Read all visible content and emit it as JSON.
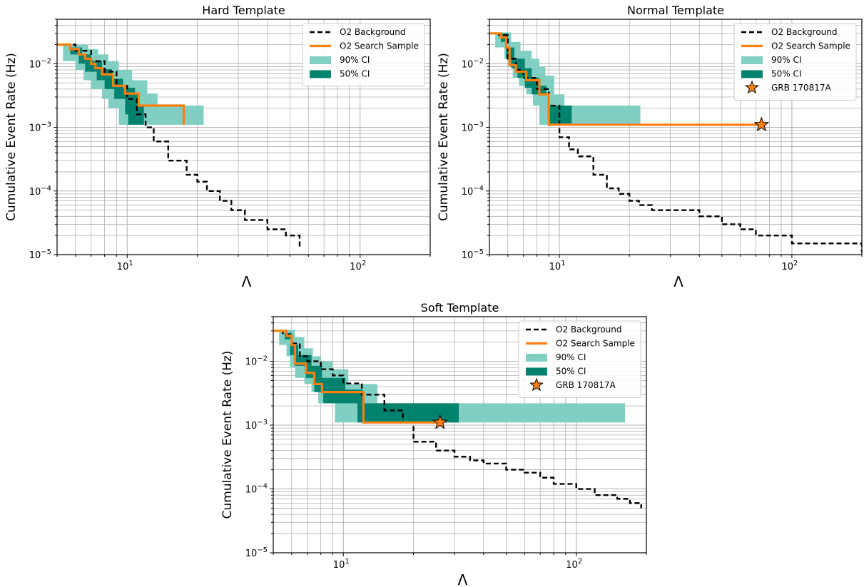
{
  "colors": {
    "background": "#000000",
    "sample": "#ff7f0e",
    "ci90": "#80cfc2",
    "ci50": "#00826e",
    "star_fill": "#ff7f0e",
    "grid": "#b0b0b0"
  },
  "chart_data": [
    {
      "type": "line",
      "title": "Hard Template",
      "xlabel": "Λ",
      "ylabel": "Cumulative Event Rate (Hz)",
      "xscale": "log",
      "yscale": "log",
      "xlim": [
        5,
        200
      ],
      "ylim": [
        1e-05,
        0.05
      ],
      "x_ticks": [
        {
          "value": 10,
          "label": "10",
          "sup": "1"
        },
        {
          "value": 100,
          "label": "10",
          "sup": "2"
        }
      ],
      "y_ticks": [
        {
          "value": 1e-05,
          "label": "10",
          "sup": "−5"
        },
        {
          "value": 0.0001,
          "label": "10",
          "sup": "−4"
        },
        {
          "value": 0.001,
          "label": "10",
          "sup": "−3"
        },
        {
          "value": 0.01,
          "label": "10",
          "sup": "−2"
        }
      ],
      "grid": true,
      "legend": {
        "placement": "top-right",
        "entries": [
          {
            "label": "O2 Background",
            "kind": "dash"
          },
          {
            "label": "O2 Search Sample",
            "kind": "line"
          },
          {
            "label": "90% CI",
            "kind": "patch90"
          },
          {
            "label": "50% CI",
            "kind": "patch50"
          }
        ]
      },
      "series": [
        {
          "name": "O2 Background",
          "x": [
            5,
            6,
            7,
            8,
            9,
            10,
            11,
            12,
            13,
            15,
            18,
            20,
            22,
            25,
            28,
            32,
            40,
            48,
            55
          ],
          "y": [
            0.02,
            0.016,
            0.011,
            0.0075,
            0.0045,
            0.0028,
            0.0016,
            0.001,
            0.0006,
            0.0003,
            0.00018,
            0.00014,
            0.0001,
            7e-05,
            5e-05,
            3.5e-05,
            2.5e-05,
            2e-05,
            1.3e-05
          ]
        },
        {
          "name": "O2 Search Sample",
          "x": [
            5,
            5.7,
            6.2,
            6.6,
            7,
            7.3,
            7.8,
            8.7,
            9.8,
            11.2,
            17.5
          ],
          "y": [
            0.02,
            0.017,
            0.014,
            0.012,
            0.01,
            0.0085,
            0.0068,
            0.0045,
            0.0034,
            0.0022,
            0.0011
          ]
        }
      ],
      "ci90_bands": [
        [
          5.3,
          6.8,
          0.011,
          0.02
        ],
        [
          6.0,
          7.5,
          0.008,
          0.017
        ],
        [
          6.5,
          8.3,
          0.0055,
          0.014
        ],
        [
          7.0,
          9.2,
          0.004,
          0.011
        ],
        [
          7.8,
          10.5,
          0.0028,
          0.008
        ],
        [
          8.3,
          12.2,
          0.002,
          0.0055
        ],
        [
          9.2,
          13.5,
          0.0016,
          0.0034
        ],
        [
          9.2,
          21.3,
          0.0011,
          0.0022
        ]
      ],
      "ci50_bands": [
        [
          5.7,
          6.4,
          0.014,
          0.018
        ],
        [
          6.2,
          7.0,
          0.01,
          0.014
        ],
        [
          6.6,
          7.8,
          0.0075,
          0.011
        ],
        [
          7.4,
          8.6,
          0.0055,
          0.0082
        ],
        [
          8.0,
          9.6,
          0.004,
          0.0058
        ],
        [
          8.8,
          10.8,
          0.0028,
          0.0042
        ],
        [
          9.8,
          11.3,
          0.0016,
          0.0034
        ],
        [
          10.1,
          11.8,
          0.0011,
          0.0022
        ]
      ]
    },
    {
      "type": "line",
      "title": "Normal Template",
      "xlabel": "Λ",
      "ylabel": "Cumulative Event Rate (Hz)",
      "xscale": "log",
      "yscale": "log",
      "xlim": [
        5,
        200
      ],
      "ylim": [
        1e-05,
        0.05
      ],
      "x_ticks": [
        {
          "value": 10,
          "label": "10",
          "sup": "1"
        },
        {
          "value": 100,
          "label": "10",
          "sup": "2"
        }
      ],
      "y_ticks": [
        {
          "value": 1e-05,
          "label": "10",
          "sup": "−5"
        },
        {
          "value": 0.0001,
          "label": "10",
          "sup": "−4"
        },
        {
          "value": 0.001,
          "label": "10",
          "sup": "−3"
        },
        {
          "value": 0.01,
          "label": "10",
          "sup": "−2"
        }
      ],
      "grid": true,
      "legend": {
        "placement": "top-right",
        "entries": [
          {
            "label": "O2 Background",
            "kind": "dash"
          },
          {
            "label": "O2 Search Sample",
            "kind": "line"
          },
          {
            "label": "90% CI",
            "kind": "patch90"
          },
          {
            "label": "50% CI",
            "kind": "patch50"
          },
          {
            "label": "GRB 170817A",
            "kind": "star"
          }
        ]
      },
      "series": [
        {
          "name": "O2 Background",
          "x": [
            5,
            5.5,
            6,
            6.5,
            7,
            8,
            9,
            10,
            11,
            12,
            14,
            16,
            18,
            20,
            22,
            25,
            30,
            40,
            50,
            60,
            70,
            100,
            150,
            200
          ],
          "y": [
            0.03,
            0.028,
            0.012,
            0.008,
            0.006,
            0.004,
            0.0022,
            0.0007,
            0.00045,
            0.00035,
            0.00018,
            0.00011,
            9e-05,
            7e-05,
            6e-05,
            5e-05,
            5e-05,
            4e-05,
            3e-05,
            2.5e-05,
            2e-05,
            1.5e-05,
            1.5e-05,
            1.1e-05
          ]
        },
        {
          "name": "O2 Search Sample",
          "x": [
            5,
            5.6,
            5.9,
            6.1,
            6.5,
            7.2,
            8.2,
            9,
            74
          ],
          "y": [
            0.03,
            0.026,
            0.018,
            0.0095,
            0.0075,
            0.0055,
            0.0033,
            0.0011,
            0.0011
          ]
        }
      ],
      "ci90_bands": [
        [
          5.3,
          6.2,
          0.018,
          0.031
        ],
        [
          5.8,
          6.8,
          0.012,
          0.022
        ],
        [
          6.0,
          7.6,
          0.009,
          0.016
        ],
        [
          6.3,
          8.2,
          0.006,
          0.012
        ],
        [
          6.7,
          8.7,
          0.0045,
          0.009
        ],
        [
          7.2,
          9.5,
          0.0033,
          0.0065
        ],
        [
          7.7,
          10.5,
          0.0022,
          0.0033
        ],
        [
          8.2,
          22.3,
          0.0011,
          0.0022
        ]
      ],
      "ci50_bands": [
        [
          5.6,
          6.0,
          0.022,
          0.03
        ],
        [
          5.9,
          6.4,
          0.012,
          0.018
        ],
        [
          6.2,
          7.1,
          0.0085,
          0.012
        ],
        [
          6.6,
          7.6,
          0.006,
          0.0085
        ],
        [
          7.1,
          8.2,
          0.0042,
          0.006
        ],
        [
          7.6,
          8.8,
          0.0033,
          0.0045
        ],
        [
          9.0,
          11.3,
          0.0011,
          0.0022
        ]
      ],
      "stars": [
        {
          "x": 74,
          "y": 0.0011
        }
      ]
    },
    {
      "type": "line",
      "title": "Soft Template",
      "xlabel": "Λ",
      "ylabel": "Cumulative Event Rate (Hz)",
      "xscale": "log",
      "yscale": "log",
      "xlim": [
        5,
        200
      ],
      "ylim": [
        1e-05,
        0.05
      ],
      "x_ticks": [
        {
          "value": 10,
          "label": "10",
          "sup": "1"
        },
        {
          "value": 100,
          "label": "10",
          "sup": "2"
        }
      ],
      "y_ticks": [
        {
          "value": 1e-05,
          "label": "10",
          "sup": "−5"
        },
        {
          "value": 0.0001,
          "label": "10",
          "sup": "−4"
        },
        {
          "value": 0.001,
          "label": "10",
          "sup": "−3"
        },
        {
          "value": 0.01,
          "label": "10",
          "sup": "−2"
        }
      ],
      "grid": true,
      "legend": {
        "placement": "top-right",
        "entries": [
          {
            "label": "O2 Background",
            "kind": "dash"
          },
          {
            "label": "O2 Search Sample",
            "kind": "line"
          },
          {
            "label": "90% CI",
            "kind": "patch90"
          },
          {
            "label": "50% CI",
            "kind": "patch50"
          },
          {
            "label": "GRB 170817A",
            "kind": "star"
          }
        ]
      },
      "series": [
        {
          "name": "O2 Background",
          "x": [
            5,
            5.5,
            6,
            6.5,
            7,
            8,
            9,
            10,
            12,
            15,
            18,
            20,
            25,
            30,
            35,
            40,
            50,
            60,
            70,
            80,
            100,
            120,
            150,
            170,
            190
          ],
          "y": [
            0.03,
            0.026,
            0.019,
            0.012,
            0.01,
            0.0075,
            0.006,
            0.0045,
            0.003,
            0.0017,
            0.0011,
            0.00055,
            0.0004,
            0.00032,
            0.00028,
            0.00025,
            0.0002,
            0.00018,
            0.00015,
            0.00012,
            0.0001,
            8e-05,
            7e-05,
            6e-05,
            5e-05
          ]
        },
        {
          "name": "O2 Search Sample",
          "x": [
            5,
            5.7,
            6.0,
            6.2,
            6.9,
            7.5,
            8.1,
            12.2,
            26
          ],
          "y": [
            0.03,
            0.025,
            0.018,
            0.0092,
            0.0066,
            0.0044,
            0.0033,
            0.0011,
            0.0011
          ]
        }
      ],
      "ci90_bands": [
        [
          5.3,
          6.2,
          0.018,
          0.031
        ],
        [
          5.7,
          6.8,
          0.012,
          0.024
        ],
        [
          5.9,
          7.4,
          0.008,
          0.016
        ],
        [
          6.2,
          8.0,
          0.0055,
          0.012
        ],
        [
          6.8,
          9.0,
          0.0044,
          0.01
        ],
        [
          7.3,
          10.5,
          0.0033,
          0.0075
        ],
        [
          7.8,
          14.0,
          0.0022,
          0.0044
        ],
        [
          9.2,
          162,
          0.0011,
          0.0022
        ]
      ],
      "ci50_bands": [
        [
          5.6,
          6.0,
          0.022,
          0.028
        ],
        [
          5.9,
          6.4,
          0.0125,
          0.018
        ],
        [
          6.2,
          7.3,
          0.0085,
          0.0125
        ],
        [
          6.9,
          8.1,
          0.0055,
          0.0085
        ],
        [
          7.5,
          10.2,
          0.0033,
          0.0055
        ],
        [
          8.2,
          12.1,
          0.0022,
          0.0036
        ],
        [
          11.5,
          31.3,
          0.0011,
          0.0022
        ]
      ],
      "stars": [
        {
          "x": 26,
          "y": 0.0011
        }
      ]
    }
  ]
}
